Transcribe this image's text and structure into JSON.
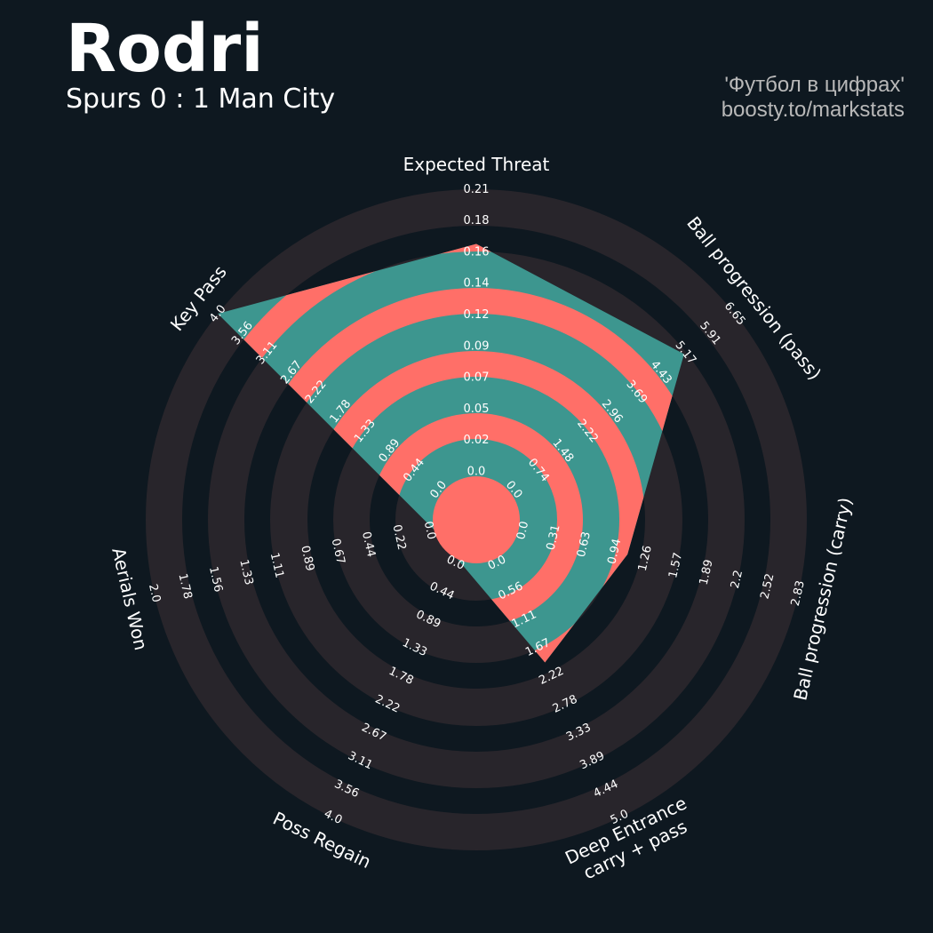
{
  "header": {
    "title": "Rodri",
    "subtitle": "Spurs 0 : 1 Man City",
    "credit_line1": "'Футбол в цифрах'",
    "credit_line2": "boosty.to/markstats"
  },
  "colors": {
    "background": "#0e1820",
    "ring": "#28252b",
    "polygon_primary": "#3d968f",
    "polygon_alt": "#ff6f68",
    "text": "#ffffff"
  },
  "chart_data": {
    "type": "radar",
    "params": [
      {
        "label": [
          "Expected Threat"
        ],
        "ticks": [
          "0.0",
          "0.02",
          "0.05",
          "0.07",
          "0.09",
          "0.12",
          "0.14",
          "0.16",
          "0.18",
          "0.21"
        ],
        "min": 0,
        "max": 0.21,
        "value": 0.17
      },
      {
        "label": [
          "Ball progression (pass)"
        ],
        "ticks": [
          "0.0",
          "0.74",
          "1.48",
          "2.22",
          "2.96",
          "3.69",
          "4.43",
          "5.17",
          "5.91",
          "6.65"
        ],
        "min": 0,
        "max": 6.65,
        "value": 5.15
      },
      {
        "label": [
          "Ball progression (carry)"
        ],
        "ticks": [
          "0.0",
          "0.31",
          "0.63",
          "0.94",
          "1.26",
          "1.57",
          "1.89",
          "2.2",
          "2.52",
          "2.83"
        ],
        "min": 0,
        "max": 2.83,
        "value": 1.1
      },
      {
        "label": [
          "Deep Entrance",
          "carry + pass"
        ],
        "ticks": [
          "0.0",
          "0.56",
          "1.11",
          "1.67",
          "2.22",
          "2.78",
          "3.33",
          "3.89",
          "4.44",
          "5.0"
        ],
        "min": 0,
        "max": 5.0,
        "value": 2.0
      },
      {
        "label": [
          "Poss Regain"
        ],
        "ticks": [
          "0.0",
          "0.44",
          "0.89",
          "1.33",
          "1.78",
          "2.22",
          "2.67",
          "3.11",
          "3.56",
          "4.0"
        ],
        "min": 0,
        "max": 4.0,
        "value": 0
      },
      {
        "label": [
          "Aerials Won"
        ],
        "ticks": [
          "0.0",
          "0.22",
          "0.44",
          "0.67",
          "0.89",
          "1.11",
          "1.33",
          "1.56",
          "1.78",
          "2.0"
        ],
        "min": 0,
        "max": 2.0,
        "value": 0
      },
      {
        "label": [
          "Key Pass"
        ],
        "ticks": [
          "0.0",
          "0.44",
          "0.89",
          "1.33",
          "1.78",
          "2.22",
          "2.67",
          "3.11",
          "3.56",
          "4.0"
        ],
        "min": 0,
        "max": 4.0,
        "value": 4.0
      }
    ]
  }
}
